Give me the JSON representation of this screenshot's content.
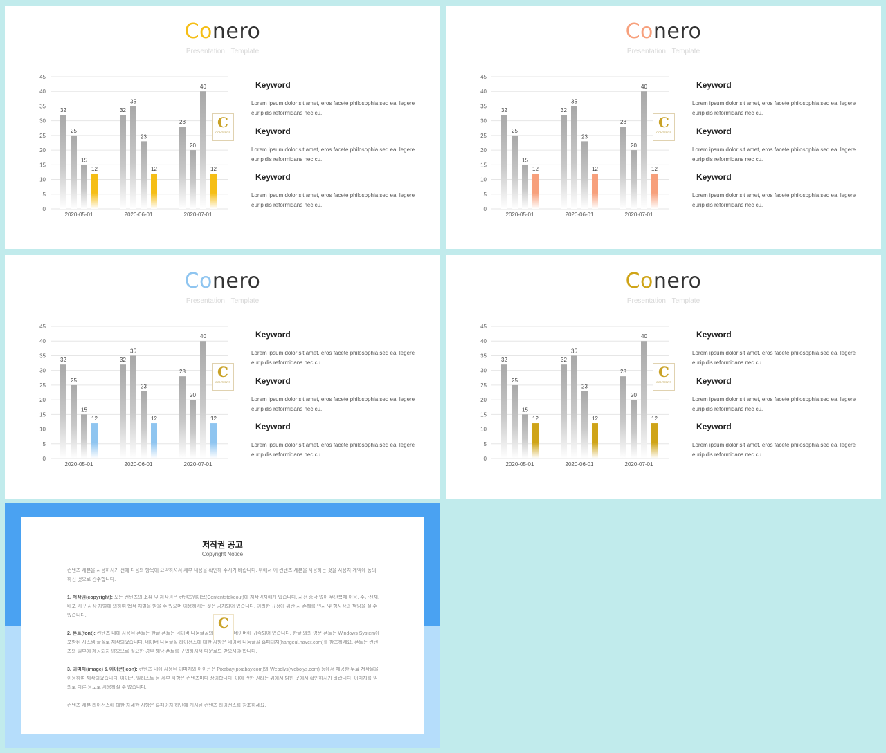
{
  "slides": [
    {
      "title_accent": "Co",
      "title_rest": "nero",
      "accent_color": "#f5be16",
      "subtitle": "Presentation  Template",
      "logo_letter": "C",
      "logo_text": "CONTENTS"
    },
    {
      "title_accent": "Co",
      "title_rest": "nero",
      "accent_color": "#f7a07c",
      "subtitle": "Presentation  Template",
      "logo_letter": "C",
      "logo_text": "CONTENTS"
    },
    {
      "title_accent": "Co",
      "title_rest": "nero",
      "accent_color": "#8fc5f0",
      "subtitle": "Presentation  Template",
      "logo_letter": "C",
      "logo_text": "CONTENTS"
    },
    {
      "title_accent": "Co",
      "title_rest": "nero",
      "accent_color": "#cfa418",
      "subtitle": "Presentation  Template",
      "logo_letter": "C",
      "logo_text": "CONTENTS"
    }
  ],
  "keywords": [
    {
      "title": "Keyword",
      "text": "Lorem ipsum dolor sit amet, eros facete philosophia sed ea, legere euripidis  reformidans nec cu."
    },
    {
      "title": "Keyword",
      "text": "Lorem ipsum dolor sit amet, eros facete philosophia sed ea, legere euripidis  reformidans nec cu."
    },
    {
      "title": "Keyword",
      "text": "Lorem ipsum dolor sit amet, eros facete philosophia sed ea, legere euripidis  reformidans nec cu."
    }
  ],
  "chart_data": {
    "type": "bar",
    "categories": [
      "2020-05-01",
      "2020-06-01",
      "2020-07-01"
    ],
    "series": [
      {
        "values": [
          32,
          32,
          28
        ]
      },
      {
        "values": [
          25,
          35,
          20
        ]
      },
      {
        "values": [
          15,
          23,
          40
        ]
      },
      {
        "values": [
          12,
          12,
          12
        ]
      }
    ],
    "ylim": [
      0,
      45
    ],
    "yticks": [
      0,
      5,
      10,
      15,
      20,
      25,
      30,
      35,
      40,
      45
    ],
    "grid": true
  },
  "notice": {
    "title": "저작권 공고",
    "subtitle": "Copyright Notice",
    "paragraphs": [
      {
        "head": "",
        "text": "컨텐츠 세븐을 사용하시기 전에 다음의 항목에 요약하셔서 세부 내용을 확인해 주시기 바랍니다. 위에서 이 컨텐츠 세븐을 사용하는 것을 사용자 계약에 동의하신 것으로 간주합니다."
      },
      {
        "head": "1. 저작권(copyright):",
        "text": " 모든 컨텐츠의 소유 및 저작권은 컨텐츠웨이브(Contentstokeout)에 저작권자에게 있습니다. 사전 승낙 없이 무단복제 이용, 수단전재, 배포 시 민사상 처벌에 의하여 법적 처벌을 받을 수 있으며 이용하시는 것은 금지되어 있습니다. 이러한 규정에 위반 시 손해를 민사 및 형사상의 책임을 질 수 있습니다."
      },
      {
        "head": "2. 폰트(font):",
        "text": " 컨텐츠 내에 사용된 폰트는 한글 폰트는 네이버 나눔글꼴의 저작권은 네이버에 귀속되어 있습니다. 한글 외의 영문 폰트는 Windows System에 포함된 시스템 글꼴로 제작되었습니다. 네이버 나눔글꼴 라이선스에 대한 사항은 네이버 나눔글꼴 홈페이지(hangeul.naver.com)를 참조하세요. 폰트는 컨텐츠의 일부에 제공되지 않으므로 필요한 경우 해당 폰트를 구입하셔서 다운로드 받으셔야 합니다."
      },
      {
        "head": "3. 이미지(image) & 아이콘(icon):",
        "text": " 컨텐츠 내에 사용된 이미지와 아이콘은 Pixabay(pixabay.com)와 Webolys(webolys.com) 등에서 제공한 무료 저작물을 이용하여 제작되었습니다. 아이콘, 일러스트 등 세부 사항은 컨텐츠마다 상이합니다. 이에 관한 권리는 위에서 밝힌 곳에서 확인하시기 바랍니다. 이미지를 임의로 다른 용도로 사용하실 수 없습니다."
      },
      {
        "head": "",
        "text": "컨텐츠 세븐 라이선스에 대한 자세한 사항은 홈페이지 하단에 게시된 컨텐츠 라이선스를 참조하세요."
      }
    ]
  }
}
